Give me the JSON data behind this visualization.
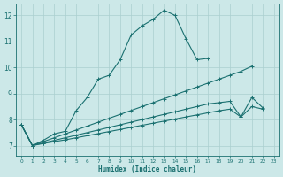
{
  "xlabel": "Humidex (Indice chaleur)",
  "bg_color": "#cce8e8",
  "grid_color": "#aacfcf",
  "line_color": "#1a7070",
  "x_ticks": [
    0,
    1,
    2,
    3,
    4,
    5,
    6,
    7,
    8,
    9,
    10,
    11,
    12,
    13,
    14,
    15,
    16,
    17,
    18,
    19,
    20,
    21,
    22,
    23
  ],
  "ylim": [
    6.6,
    12.45
  ],
  "xlim": [
    -0.5,
    23.5
  ],
  "yticks": [
    7,
    8,
    9,
    10,
    11,
    12
  ],
  "line1_y": [
    7.8,
    7.0,
    7.2,
    7.45,
    7.55,
    8.35,
    8.85,
    9.55,
    9.7,
    10.3,
    11.25,
    11.6,
    11.85,
    12.2,
    12.0,
    11.1,
    10.3,
    10.35,
    null,
    null,
    null,
    null,
    null,
    null
  ],
  "line2_y": [
    7.8,
    7.0,
    7.15,
    7.3,
    7.45,
    7.6,
    7.75,
    7.9,
    8.05,
    8.2,
    8.35,
    8.5,
    8.65,
    8.8,
    8.95,
    9.1,
    9.25,
    9.4,
    9.55,
    9.7,
    9.85,
    10.05,
    null,
    null
  ],
  "line3_y": [
    7.8,
    7.0,
    7.1,
    7.2,
    7.3,
    7.4,
    7.5,
    7.6,
    7.7,
    7.8,
    7.9,
    8.0,
    8.1,
    8.2,
    8.3,
    8.4,
    8.5,
    8.6,
    8.65,
    8.7,
    8.1,
    8.85,
    8.45,
    null
  ],
  "line4_y": [
    7.8,
    7.0,
    7.08,
    7.15,
    7.22,
    7.3,
    7.38,
    7.46,
    7.54,
    7.62,
    7.7,
    7.78,
    7.86,
    7.94,
    8.02,
    8.1,
    8.18,
    8.26,
    8.34,
    8.4,
    8.1,
    8.5,
    8.4,
    null
  ]
}
